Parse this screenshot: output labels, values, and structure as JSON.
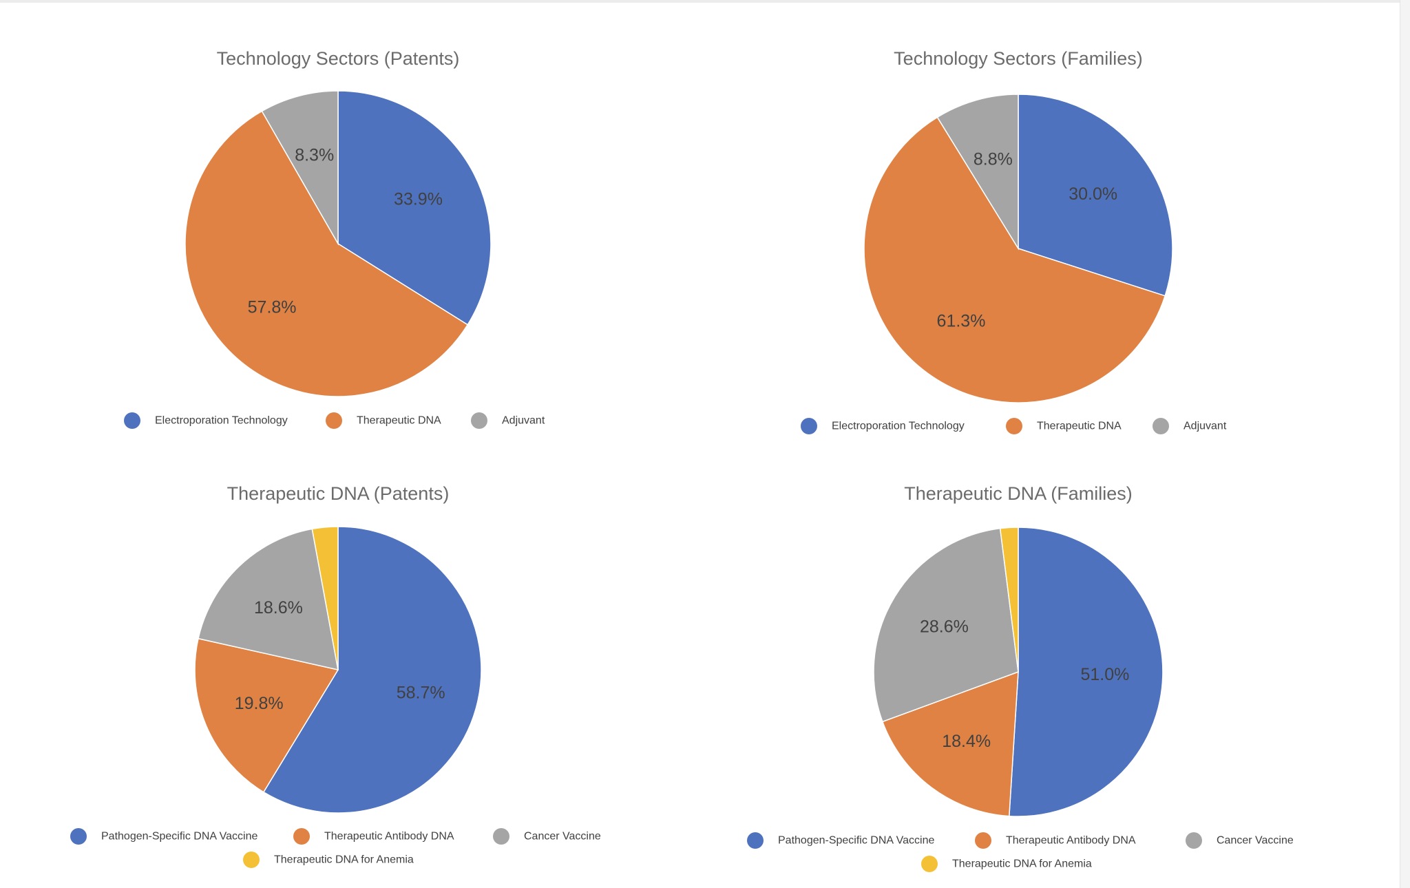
{
  "chart_data": [
    {
      "type": "pie",
      "title": "Technology Sectors (Patents)",
      "categories": [
        "Electroporation Technology",
        "Therapeutic DNA",
        "Adjuvant"
      ],
      "values": [
        33.9,
        57.8,
        8.3
      ],
      "labels": [
        "33.9%",
        "57.8%",
        "8.3%"
      ],
      "colors": [
        "#4f72be",
        "#df8244",
        "#a5a5a5"
      ],
      "legend_position": "bottom",
      "start": "12 o'clock",
      "direction": "clockwise"
    },
    {
      "type": "pie",
      "title": "Technology Sectors (Families)",
      "categories": [
        "Electroporation Technology",
        "Therapeutic DNA",
        "Adjuvant"
      ],
      "values": [
        30.0,
        61.3,
        8.8
      ],
      "labels": [
        "30.0%",
        "61.3%",
        "8.8%"
      ],
      "colors": [
        "#4f72be",
        "#df8244",
        "#a5a5a5"
      ],
      "legend_position": "bottom",
      "start": "12 o'clock",
      "direction": "clockwise"
    },
    {
      "type": "pie",
      "title": "Therapeutic DNA (Patents)",
      "categories": [
        "Pathogen-Specific DNA Vaccine",
        "Therapeutic Antibody DNA",
        "Cancer Vaccine",
        "Therapeutic DNA for Anemia"
      ],
      "values": [
        58.7,
        19.8,
        18.6,
        2.9
      ],
      "labels": [
        "58.7%",
        "19.8%",
        "18.6%",
        ""
      ],
      "colors": [
        "#4f72be",
        "#df8244",
        "#a5a5a5",
        "#f4c136"
      ],
      "legend_position": "bottom",
      "start": "12 o'clock",
      "direction": "clockwise"
    },
    {
      "type": "pie",
      "title": "Therapeutic DNA (Families)",
      "categories": [
        "Pathogen-Specific DNA Vaccine",
        "Therapeutic Antibody DNA",
        "Cancer Vaccine",
        "Therapeutic DNA for Anemia"
      ],
      "values": [
        51.0,
        18.4,
        28.6,
        2.0
      ],
      "labels": [
        "51.0%",
        "18.4%",
        "28.6%",
        ""
      ],
      "colors": [
        "#4f72be",
        "#df8244",
        "#a5a5a5",
        "#f4c136"
      ],
      "legend_position": "bottom",
      "start": "12 o'clock",
      "direction": "clockwise"
    }
  ]
}
